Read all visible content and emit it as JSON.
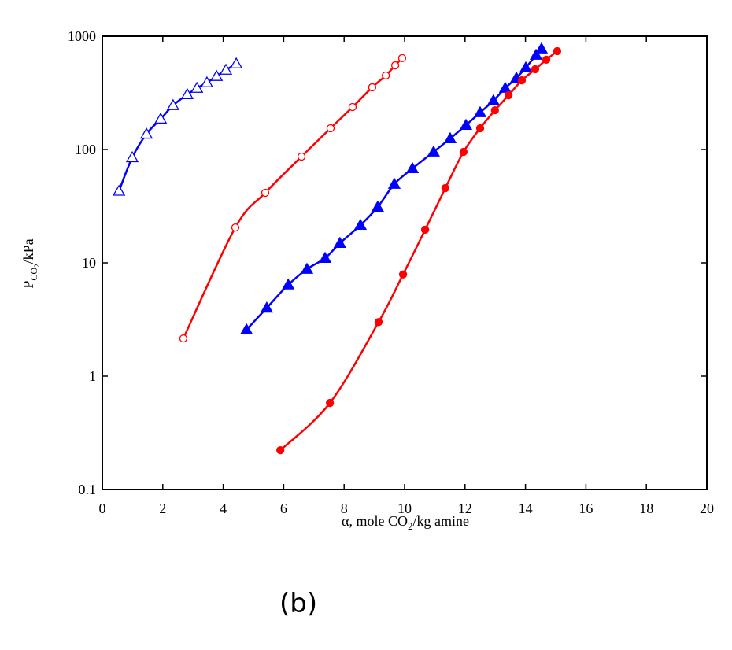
{
  "chart_data": {
    "type": "scatter",
    "x_label": [
      "α, mole CO",
      "2",
      "/kg amine"
    ],
    "y_label": [
      "P",
      "CO",
      "2",
      "/kPa"
    ],
    "caption": "(b)",
    "xlim": [
      0,
      20
    ],
    "xticks": [
      0,
      2,
      4,
      6,
      8,
      10,
      12,
      14,
      16,
      18,
      20
    ],
    "ylim": [
      0.1,
      1000
    ],
    "yticks": [
      0.1,
      1,
      10,
      100,
      1000
    ],
    "log_y": true,
    "series": [
      {
        "color": "#0000ff",
        "marker": "triangle",
        "filled": false,
        "x": [
          0.55,
          0.99,
          1.46,
          1.93,
          2.34,
          2.81,
          3.13,
          3.46,
          3.78,
          4.09,
          4.43
        ],
        "values": [
          43,
          85,
          137,
          186,
          245,
          306,
          348,
          389,
          443,
          503,
          571
        ]
      },
      {
        "color": "#ff0000",
        "marker": "circle",
        "filled": false,
        "x": [
          2.68,
          4.4,
          5.39,
          6.59,
          7.55,
          8.28,
          8.93,
          9.38,
          9.69,
          9.92
        ],
        "values": [
          2.15,
          20.5,
          41.5,
          86.6,
          154,
          237,
          354,
          450,
          553,
          640
        ]
      },
      {
        "color": "#0000ff",
        "marker": "triangle",
        "filled": true,
        "x": [
          4.77,
          5.44,
          6.15,
          6.77,
          7.37,
          7.86,
          8.54,
          9.11,
          9.66,
          10.26,
          10.96,
          11.51,
          12.03,
          12.5,
          12.94,
          13.33,
          13.7,
          14.01,
          14.35,
          14.53
        ],
        "values": [
          2.57,
          4.0,
          6.4,
          8.8,
          11.0,
          14.9,
          21.5,
          31.1,
          49.5,
          68,
          95.3,
          125,
          164,
          212,
          270,
          348,
          428,
          527,
          681,
          775
        ]
      },
      {
        "color": "#ff0000",
        "marker": "circle",
        "filled": true,
        "x": [
          5.89,
          7.53,
          9.14,
          9.95,
          10.68,
          11.35,
          11.95,
          12.5,
          12.99,
          13.44,
          13.88,
          14.32,
          14.69,
          15.05
        ],
        "values": [
          0.222,
          0.58,
          3.0,
          7.9,
          19.6,
          45.7,
          95.3,
          154,
          222,
          301,
          408,
          511,
          620,
          738
        ]
      }
    ]
  }
}
